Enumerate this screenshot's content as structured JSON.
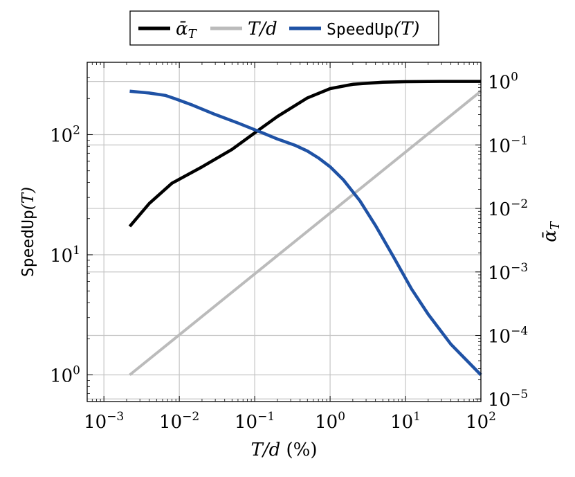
{
  "chart_data": {
    "type": "line",
    "x_scale": "log",
    "y_scale": "log",
    "y2_scale": "log",
    "xlim": [
      0.0006,
      100
    ],
    "ylim": [
      0.6,
      400
    ],
    "y2lim": [
      9.1e-06,
      2.0
    ],
    "grid": true,
    "legend_position": "top-center",
    "xlabel": {
      "main": "T/d",
      "suffix": " (%)"
    },
    "ylabel": {
      "mono": "SpeedUp",
      "arg": "(T)"
    },
    "y2label": {
      "main": "ᾱ",
      "sub": "T"
    },
    "x_ticks": [
      {
        "value": 0.001,
        "exp": "−3"
      },
      {
        "value": 0.01,
        "exp": "−2"
      },
      {
        "value": 0.1,
        "exp": "−1"
      },
      {
        "value": 1,
        "exp": "0"
      },
      {
        "value": 10,
        "exp": "1"
      },
      {
        "value": 100,
        "exp": "2"
      }
    ],
    "y_ticks": [
      {
        "value": 1,
        "exp": "0"
      },
      {
        "value": 10,
        "exp": "1"
      },
      {
        "value": 100,
        "exp": "2"
      }
    ],
    "y2_ticks": [
      {
        "value": 1e-05,
        "exp": "−5"
      },
      {
        "value": 0.0001,
        "exp": "−4"
      },
      {
        "value": 0.001,
        "exp": "−3"
      },
      {
        "value": 0.01,
        "exp": "−2"
      },
      {
        "value": 0.1,
        "exp": "−1"
      },
      {
        "value": 1,
        "exp": "0"
      }
    ],
    "series": [
      {
        "name": "ᾱ",
        "name_sub": "T",
        "name_style": "serif",
        "color": "#000000",
        "axis": "y2",
        "x": [
          0.0022,
          0.004,
          0.008,
          0.02,
          0.05,
          0.1,
          0.2,
          0.5,
          1,
          2,
          5,
          10,
          30,
          100
        ],
        "values": [
          0.0052,
          0.012,
          0.025,
          0.045,
          0.085,
          0.155,
          0.28,
          0.55,
          0.77,
          0.9,
          0.97,
          0.99,
          1.0,
          1.0
        ]
      },
      {
        "name": "T/d",
        "name_style": "serif",
        "color": "#bbbbbb",
        "axis": "y",
        "x": [
          0.0022,
          100
        ],
        "values": [
          1.0,
          230
        ]
      },
      {
        "name": "SpeedUp",
        "name_arg": "(T)",
        "name_style": "mono",
        "color": "#1f52a5",
        "axis": "y",
        "x": [
          0.0022,
          0.004,
          0.0065,
          0.009,
          0.015,
          0.03,
          0.06,
          0.12,
          0.2,
          0.35,
          0.5,
          0.7,
          1.0,
          1.5,
          2.5,
          4,
          7,
          12,
          20,
          40,
          100
        ],
        "values": [
          230,
          222,
          212,
          198,
          176,
          147,
          125,
          105,
          92,
          81,
          73,
          64,
          54,
          42,
          28,
          17.5,
          9.5,
          5.2,
          3.2,
          1.8,
          1.0
        ]
      }
    ]
  }
}
